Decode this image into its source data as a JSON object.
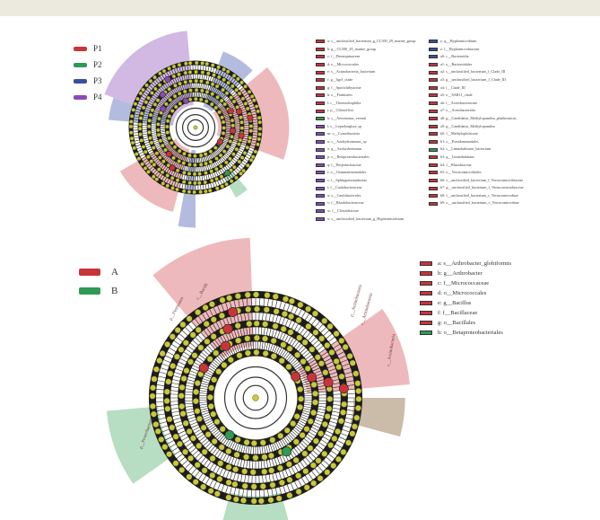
{
  "figure_top": {
    "legend": [
      {
        "label": "P1",
        "color": "#c9343b"
      },
      {
        "label": "P2",
        "color": "#2e9a55"
      },
      {
        "label": "P3",
        "color": "#3a4fa0"
      },
      {
        "label": "P4",
        "color": "#8a4bb5"
      }
    ],
    "key_col1": [
      {
        "text": "a: s__unclassified_bacterium_g_CL500_29_marine_group",
        "color": "#c9343b"
      },
      {
        "text": "b: g__CL500_29_marine_group",
        "color": "#c9343b"
      },
      {
        "text": "c: f__Demequinaceae",
        "color": "#c9343b"
      },
      {
        "text": "d: o__Micrococcales",
        "color": "#c9343b"
      },
      {
        "text": "e: s__Actinobacteria_bacterium",
        "color": "#c9343b"
      },
      {
        "text": "f: g__hgcI_clade",
        "color": "#c9343b"
      },
      {
        "text": "g: f__Sporichthyaceae",
        "color": "#c9343b"
      },
      {
        "text": "h: o__Frankiales",
        "color": "#c9343b"
      },
      {
        "text": "i: c__Thermoleophilia",
        "color": "#c9343b"
      },
      {
        "text": "j: p__Chloroflexi",
        "color": "#c9343b"
      },
      {
        "text": "k: s__Aeromonas_veronii",
        "color": "#2e9a55"
      },
      {
        "text": "l: s__Leptolyngbya_sp",
        "color": "#8a4bb5"
      },
      {
        "text": "m: o__Cyanobacteria",
        "color": "#8a4bb5"
      },
      {
        "text": "n: s__Azohydromonas_sp",
        "color": "#8a4bb5"
      },
      {
        "text": "o: g__Azohydromonas",
        "color": "#8a4bb5"
      },
      {
        "text": "p: o__Betaproteobacteriales",
        "color": "#8a4bb5"
      },
      {
        "text": "q: f__Beijerinckiaceae",
        "color": "#8a4bb5"
      },
      {
        "text": "r: o__Gemmatimonadales",
        "color": "#8a4bb5"
      },
      {
        "text": "s: f__Sphingomonadaceae",
        "color": "#8a4bb5"
      },
      {
        "text": "t: f__Caulobacteraceae",
        "color": "#8a4bb5"
      },
      {
        "text": "u: o__Caulobacterales",
        "color": "#8a4bb5"
      },
      {
        "text": "v: f__Rhodobacteraceae",
        "color": "#8a4bb5"
      },
      {
        "text": "w: f__Clostridiaceae",
        "color": "#8a4bb5"
      },
      {
        "text": "x: s__unclassified_bacterium_g_Hyphomicrobium",
        "color": "#8a4bb5"
      }
    ],
    "key_col2": [
      {
        "text": "y: g__Hyphomicrobium",
        "color": "#3a4fa0"
      },
      {
        "text": "z: f__Hyphomicrobiaceae",
        "color": "#3a4fa0"
      },
      {
        "text": "a0: c__Bacteroidia",
        "color": "#3a4fa0"
      },
      {
        "text": "a1: o__Bacteroidales",
        "color": "#c9343b"
      },
      {
        "text": "a2: s__unclassified_bacterium_f_Clade_III",
        "color": "#c9343b"
      },
      {
        "text": "a3: g__unclassified_bacterium_f_Clade_III",
        "color": "#c9343b"
      },
      {
        "text": "a4: f__Clade_III",
        "color": "#c9343b"
      },
      {
        "text": "a5: o__SAR11_clade",
        "color": "#c9343b"
      },
      {
        "text": "a6: f__Acetobacteraceae",
        "color": "#c9343b"
      },
      {
        "text": "a7: o__Acetobacterales",
        "color": "#c9343b"
      },
      {
        "text": "a8: g__Candidatus_Methylopumilus_planktonicus",
        "color": "#c9343b"
      },
      {
        "text": "a9: g__Candidatus_Methylopumilus",
        "color": "#c9343b"
      },
      {
        "text": "b0: f__Methylophilaceae",
        "color": "#c9343b"
      },
      {
        "text": "b1: o__Pseudomonadales",
        "color": "#c9343b"
      },
      {
        "text": "b2: s__Limnohabitans_bacterium",
        "color": "#2e9a55"
      },
      {
        "text": "b3: g__Limnohabitans",
        "color": "#c9343b"
      },
      {
        "text": "b4: f__Rhizobiaceae",
        "color": "#c9343b"
      },
      {
        "text": "b5: o__Verrucomicrobiales",
        "color": "#c9343b"
      },
      {
        "text": "b6: s__unclassified_bacterium_f_Verrucomicrobiaceae",
        "color": "#c9343b"
      },
      {
        "text": "b7: g__unclassified_bacterium_f_Verrucomicrobiaceae",
        "color": "#c9343b"
      },
      {
        "text": "b8: f__unclassified_bacterium_c_Verrucomicrobiae",
        "color": "#c9343b"
      },
      {
        "text": "b9: o__unclassified_bacterium_c_Verrucomicrobiae",
        "color": "#c9343b"
      }
    ]
  },
  "figure_bottom": {
    "legend": [
      {
        "label": "A",
        "color": "#c9343b"
      },
      {
        "label": "B",
        "color": "#2e9a55"
      }
    ],
    "key": [
      {
        "text": "a: s__Arthrobacter_globiformis",
        "color": "#c9343b"
      },
      {
        "text": "b: g__Arthrobacter",
        "color": "#c9343b"
      },
      {
        "text": "c: f__Micrococcaceae",
        "color": "#c9343b"
      },
      {
        "text": "d: o__Micrococcales",
        "color": "#c9343b"
      },
      {
        "text": "e: g__Bacillus",
        "color": "#c9343b"
      },
      {
        "text": "f: f__Bacillaceae",
        "color": "#c9343b"
      },
      {
        "text": "g: o__Bacillales",
        "color": "#c9343b"
      },
      {
        "text": "h: o__Betaproteobacteriales",
        "color": "#2e9a55"
      }
    ],
    "clade_labels": {
      "firmicutes": "p__Firmicutes",
      "bacilli": "c__Bacilli",
      "actinobacteria_p": "p__Actinobacteria",
      "actinobacteria_c": "c__Actinobacteria",
      "actinobacteria_side": "c__Actinobacteria",
      "proteobacteria": "p__Proteobacteria"
    }
  },
  "colors": {
    "node_fill": "#c8c841",
    "node_stroke": "#5a5a12",
    "ring_dark": "#1c1c1c",
    "red_sector": "#e8a2a6",
    "green_sector": "#9fd1ae",
    "blue_sector": "#9aa6d4",
    "purple_sector": "#c1a1d9",
    "brown_sector": "#b9a48c"
  }
}
